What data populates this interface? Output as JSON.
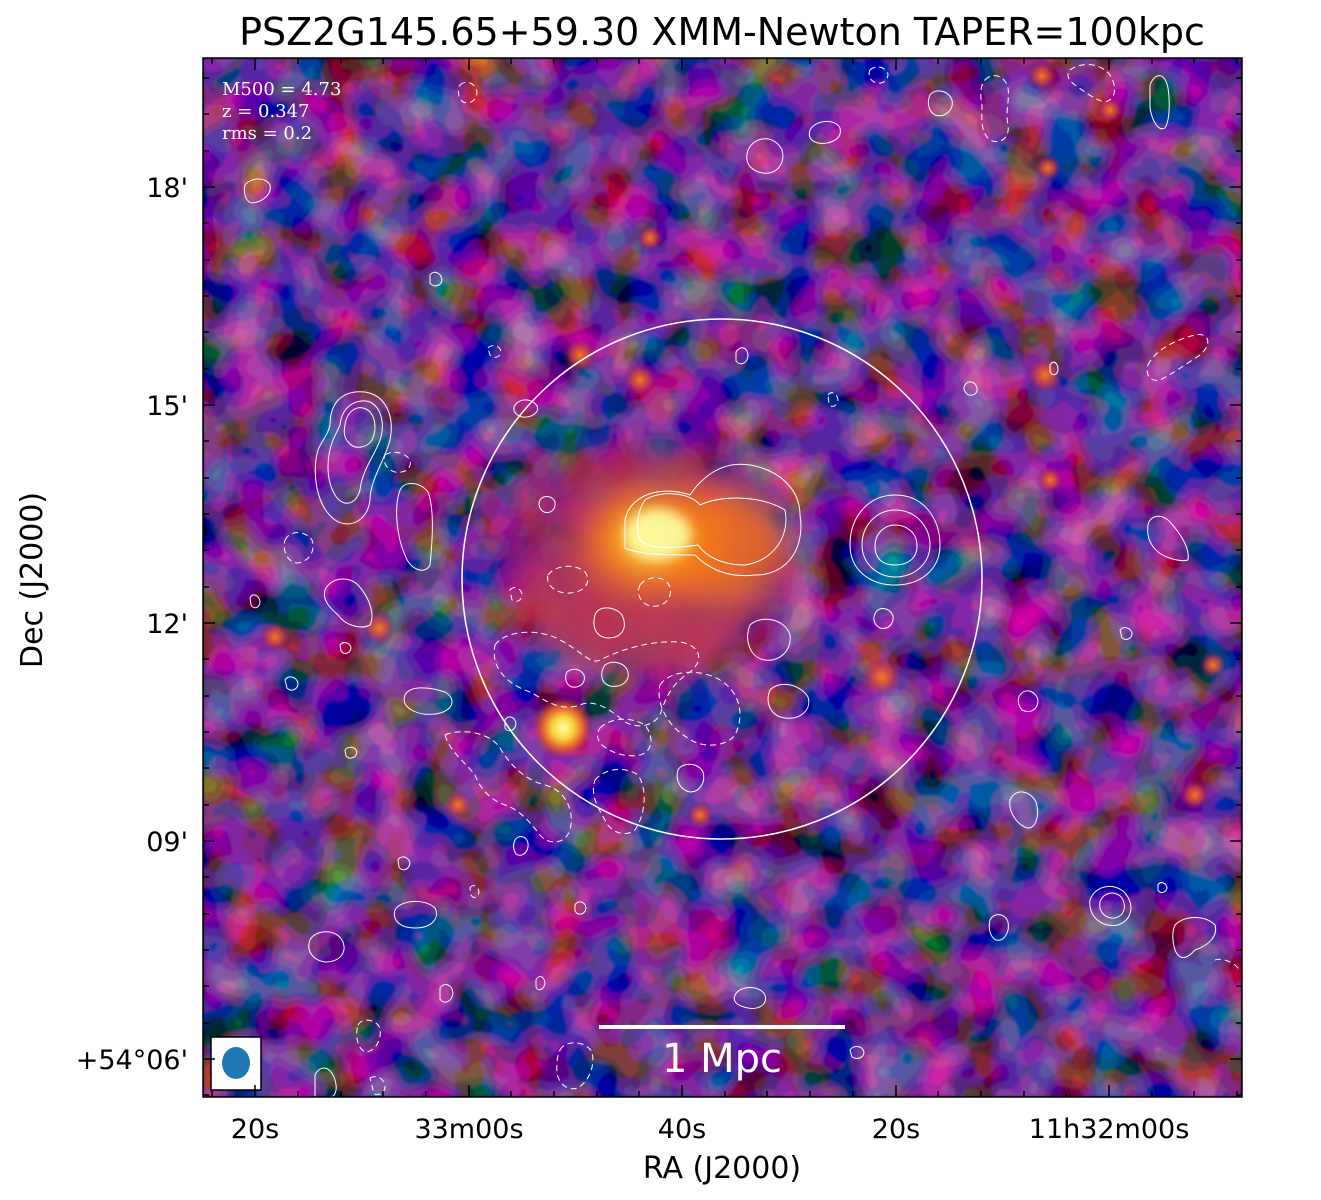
{
  "figure": {
    "title": "PSZ2G145.65+59.30 XMM-Newton TAPER=100kpc",
    "xlabel": "RA (J2000)",
    "ylabel": "Dec (J2000)",
    "info_lines": [
      "M500 = 4.73",
      "z = 0.347",
      "rms = 0.2"
    ],
    "scalebar_label": "1 Mpc",
    "colormap": "inferno",
    "contour_color": "#ffffff",
    "beam_color": "#1f77b4",
    "x_ticks": [
      "20s",
      "33m00s",
      "40s",
      "20s",
      "11h32m00s"
    ],
    "y_ticks": [
      "18'",
      "15'",
      "12'",
      "09'",
      "+54°06'"
    ]
  }
}
